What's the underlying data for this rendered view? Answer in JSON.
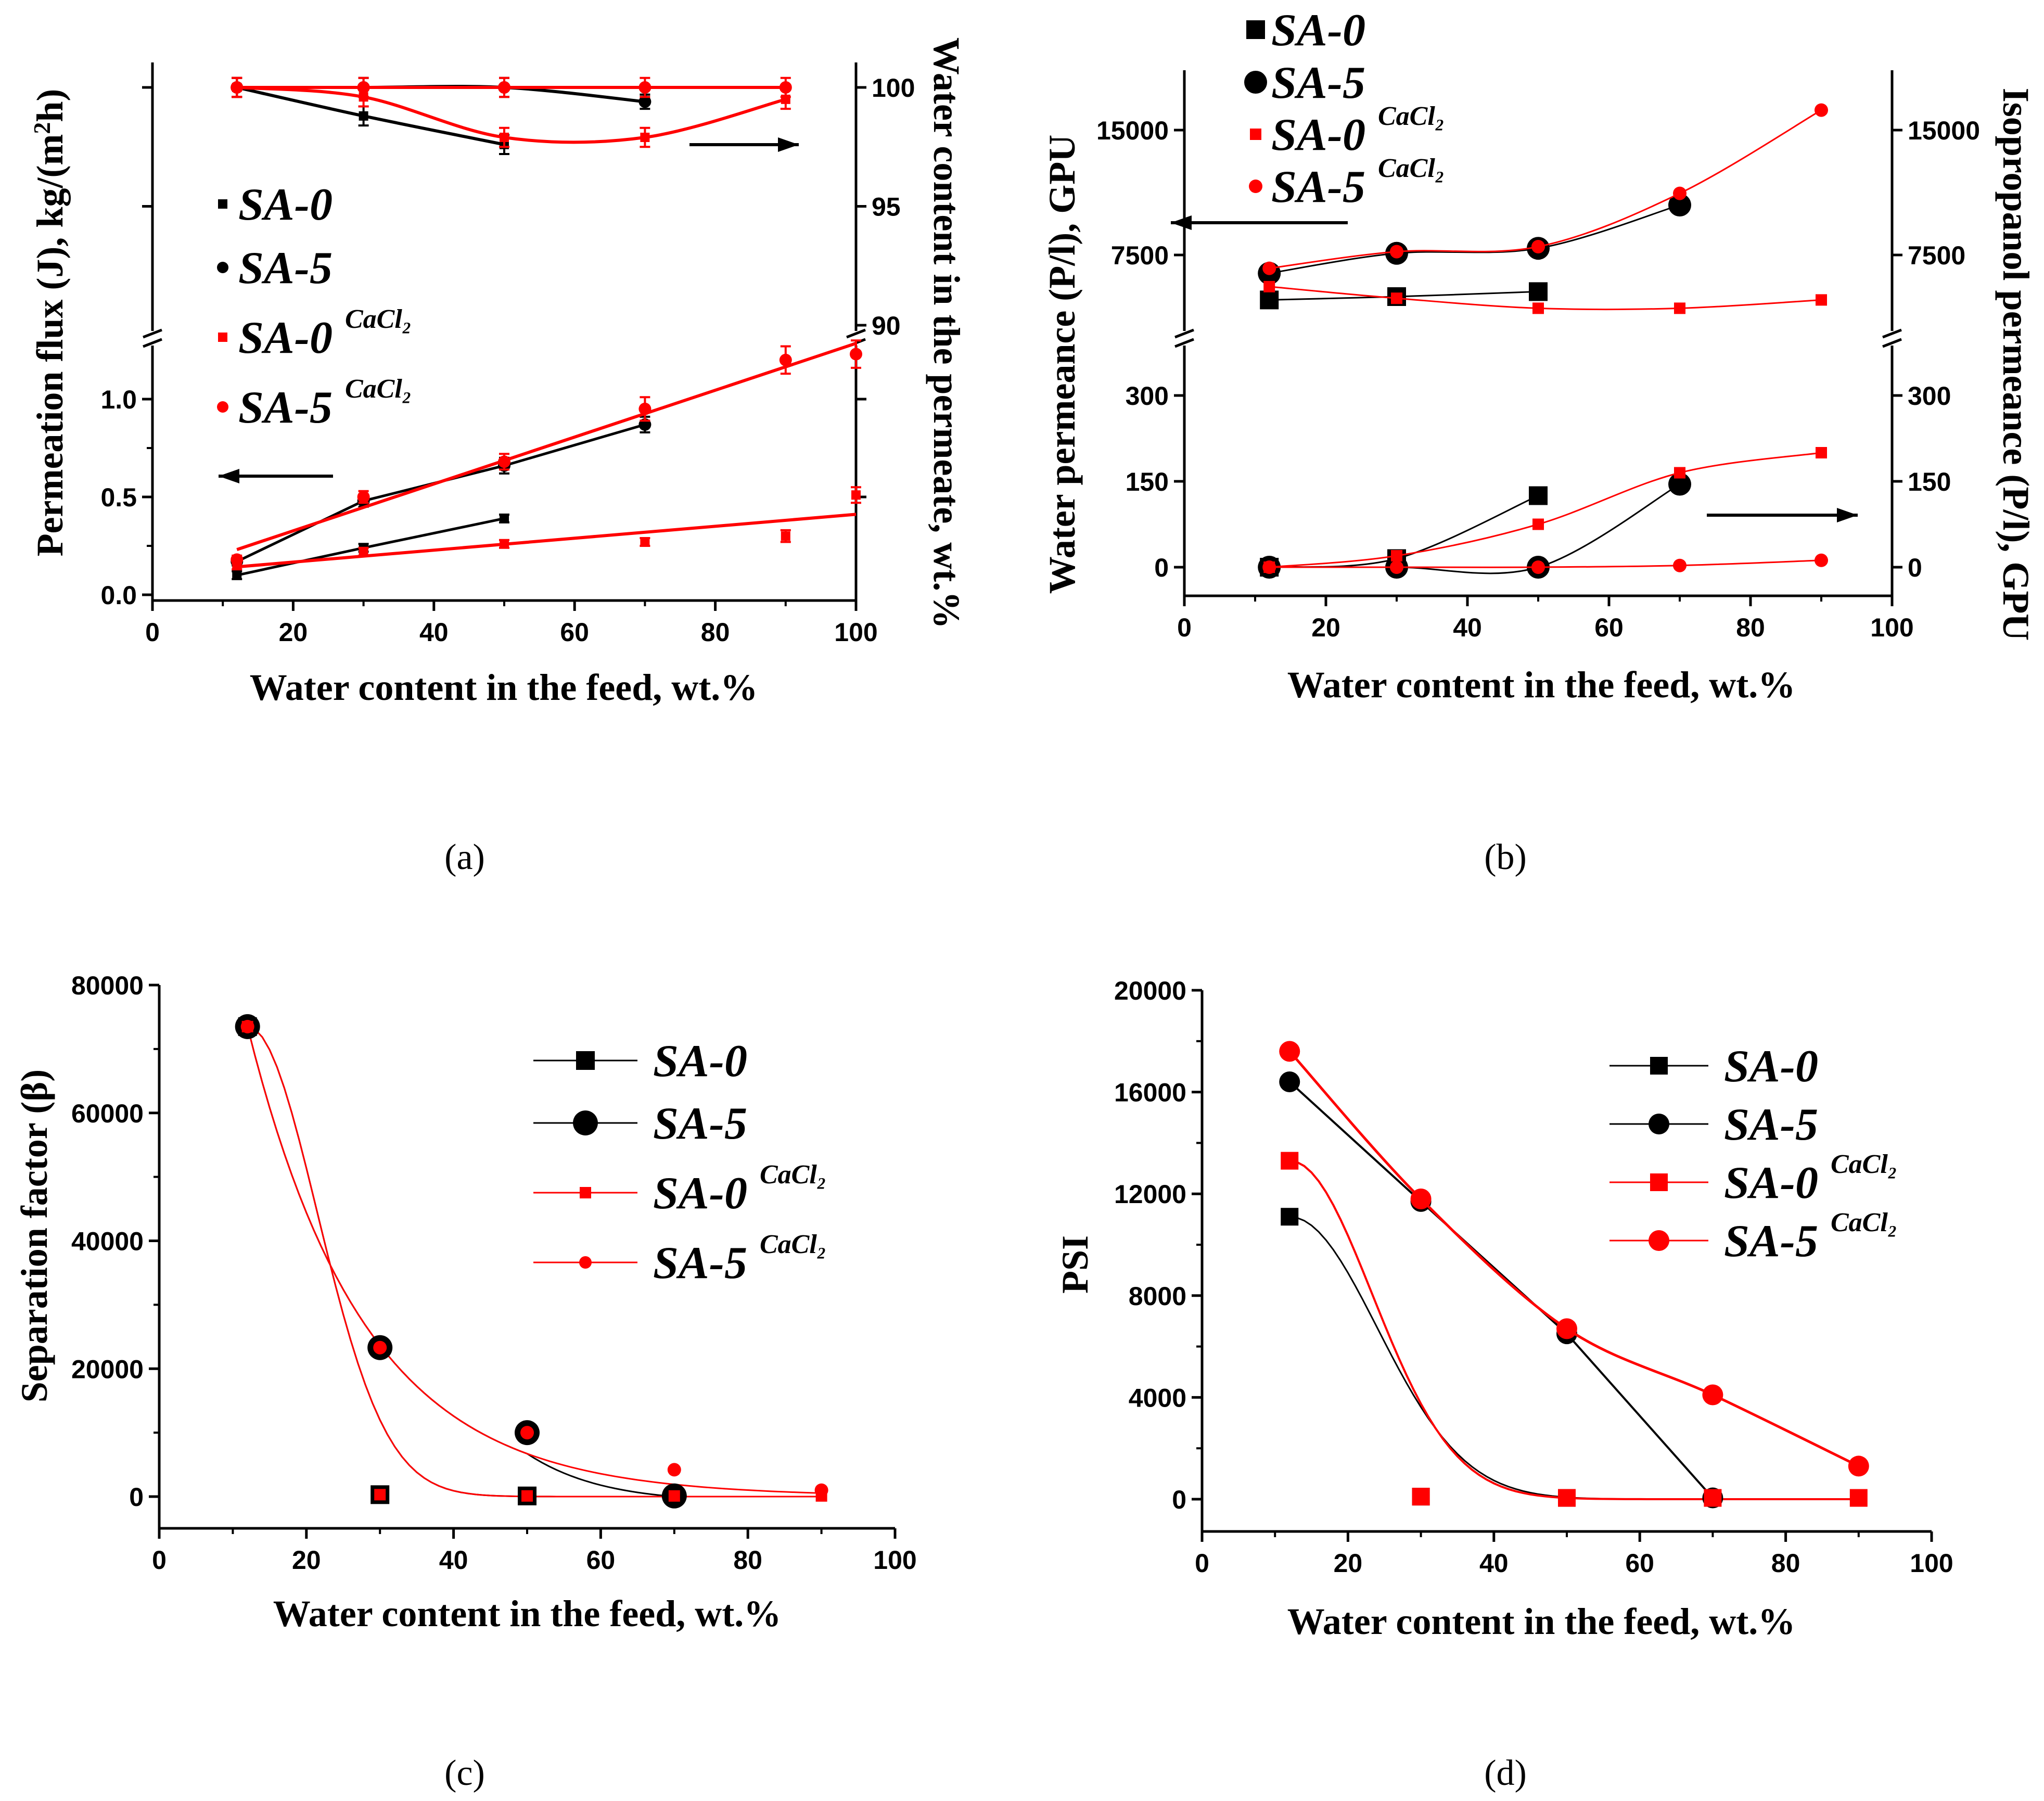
{
  "colors": {
    "black": "#000000",
    "red": "#ff0000"
  },
  "chart_data": [
    {
      "panel": "a",
      "panel_label": "(a)",
      "type": "scatter",
      "xlabel": "Water content in the feed, wt.%",
      "ylabel": "Permeation flux (J), kg/(m²h)",
      "ylabel_left": "Permeation flux (J), kg/(m",
      "ylabel_right": "h)",
      "y2label": "Water content in the permeate, wt.%",
      "x_ticks": [
        "0",
        "20",
        "40",
        "60",
        "80",
        "100"
      ],
      "y_ticks": [
        "0.0",
        "0.5",
        "1.0"
      ],
      "y2_ticks": [
        "90",
        "95",
        "100"
      ],
      "xlim": [
        0,
        100
      ],
      "ylim_flux": [
        -0.05,
        1.3
      ],
      "ylim_permeate": [
        90,
        101
      ],
      "legend": [
        "SA-0",
        "SA-5",
        "SA-0",
        "SA-5"
      ],
      "legend_sup": "CaCl₂",
      "legend_sup_main": "CaCl",
      "legend_sup_sub": "2",
      "series": [
        {
          "name": "SA-0",
          "color": "black",
          "marker": "square",
          "axis": "flux",
          "x": [
            12,
            30,
            50
          ],
          "y": [
            0.1,
            0.24,
            0.39
          ],
          "err": [
            0.02,
            0.02,
            0.02
          ]
        },
        {
          "name": "SA-5",
          "color": "black",
          "marker": "circle",
          "axis": "flux",
          "x": [
            12,
            30,
            50,
            70
          ],
          "y": [
            0.17,
            0.48,
            0.66,
            0.87
          ],
          "err": [
            0.02,
            0.03,
            0.04,
            0.04
          ]
        },
        {
          "name": "SA-0 CaCl2",
          "color": "red",
          "marker": "square",
          "axis": "flux",
          "x": [
            12,
            30,
            50,
            70,
            90,
            100
          ],
          "y": [
            0.15,
            0.22,
            0.26,
            0.27,
            0.3,
            0.51
          ],
          "err": [
            0.02,
            0.02,
            0.02,
            0.02,
            0.03,
            0.04
          ]
        },
        {
          "name": "SA-5 CaCl2",
          "color": "red",
          "marker": "circle",
          "axis": "flux",
          "x": [
            12,
            30,
            50,
            70,
            90,
            100
          ],
          "y": [
            0.18,
            0.5,
            0.68,
            0.95,
            1.2,
            1.23
          ],
          "err": [
            0.02,
            0.03,
            0.04,
            0.06,
            0.07,
            0.07
          ]
        },
        {
          "name": "SA-0 permeate",
          "color": "black",
          "marker": "square",
          "axis": "permeate",
          "x": [
            12,
            30,
            50
          ],
          "y": [
            100,
            98.8,
            97.6
          ],
          "err": [
            0.4,
            0.4,
            0.4
          ]
        },
        {
          "name": "SA-5 permeate",
          "color": "black",
          "marker": "circle",
          "axis": "permeate",
          "x": [
            12,
            30,
            50,
            70
          ],
          "y": [
            100,
            100,
            100,
            99.4
          ],
          "err": [
            0.4,
            0.4,
            0.4,
            0.3
          ]
        },
        {
          "name": "SA-0 CaCl2 permeate",
          "color": "red",
          "marker": "square",
          "axis": "permeate",
          "x": [
            12,
            30,
            50,
            70,
            90
          ],
          "y": [
            100,
            99.6,
            97.9,
            97.9,
            99.5
          ],
          "err": [
            0.4,
            0.4,
            0.4,
            0.4,
            0.4
          ]
        },
        {
          "name": "SA-5 CaCl2 permeate",
          "color": "red",
          "marker": "circle",
          "axis": "permeate",
          "x": [
            12,
            30,
            50,
            70,
            90
          ],
          "y": [
            100,
            100,
            100,
            100,
            100
          ],
          "err": [
            0.4,
            0.4,
            0.4,
            0.4,
            0.4
          ]
        }
      ]
    },
    {
      "panel": "b",
      "panel_label": "(b)",
      "type": "scatter",
      "xlabel": "Water content in the feed, wt.%",
      "ylabel": "Water permeance (P/l), GPU",
      "y2label": "Isopropanol permeance (P/l), GPU",
      "x_ticks": [
        "0",
        "20",
        "40",
        "60",
        "80",
        "100"
      ],
      "y_ticks_low": [
        "0",
        "150",
        "300"
      ],
      "y_ticks_high": [
        "7500",
        "15000"
      ],
      "xlim": [
        0,
        100
      ],
      "ylim_low": [
        -50,
        380
      ],
      "ylim_high": [
        3000,
        18500
      ],
      "legend": [
        "SA-0",
        "SA-5",
        "SA-0",
        "SA-5"
      ],
      "legend_sup": "CaCl₂",
      "series": [
        {
          "name": "SA-0 water",
          "color": "black",
          "marker": "square",
          "x": [
            12,
            30,
            50
          ],
          "y": [
            4800,
            5000,
            5300
          ]
        },
        {
          "name": "SA-5 water",
          "color": "black",
          "marker": "circle",
          "x": [
            12,
            30,
            50,
            70
          ],
          "y": [
            6400,
            7600,
            7900,
            10500
          ]
        },
        {
          "name": "SA-0 CaCl2 water",
          "color": "red",
          "marker": "square",
          "x": [
            12,
            30,
            50,
            70,
            90
          ],
          "y": [
            5600,
            4900,
            4300,
            4300,
            4800
          ]
        },
        {
          "name": "SA-5 CaCl2 water",
          "color": "red",
          "marker": "circle",
          "x": [
            12,
            30,
            50,
            70,
            90
          ],
          "y": [
            6700,
            7700,
            8000,
            11200,
            16200
          ]
        },
        {
          "name": "SA-0 isopropanol",
          "color": "black",
          "marker": "square",
          "x": [
            12,
            30,
            50
          ],
          "y": [
            0,
            15,
            125
          ]
        },
        {
          "name": "SA-5 isopropanol",
          "color": "black",
          "marker": "circle",
          "x": [
            12,
            30,
            50,
            70
          ],
          "y": [
            0,
            0,
            0,
            145
          ]
        },
        {
          "name": "SA-0 CaCl2 isopropanol",
          "color": "red",
          "marker": "square",
          "x": [
            12,
            30,
            50,
            70,
            90
          ],
          "y": [
            0,
            20,
            75,
            165,
            200
          ]
        },
        {
          "name": "SA-5 CaCl2 isopropanol",
          "color": "red",
          "marker": "circle",
          "x": [
            12,
            30,
            50,
            70,
            90
          ],
          "y": [
            0,
            0,
            0,
            3,
            12
          ]
        }
      ]
    },
    {
      "panel": "c",
      "panel_label": "(c)",
      "type": "scatter",
      "xlabel": "Water content in the feed, wt.%",
      "ylabel": "Separation factor (β)",
      "x_ticks": [
        "0",
        "20",
        "40",
        "60",
        "80",
        "100"
      ],
      "y_ticks": [
        "0",
        "20000",
        "40000",
        "60000",
        "80000"
      ],
      "xlim": [
        0,
        100
      ],
      "ylim": [
        -5000,
        80000
      ],
      "legend": [
        "SA-0",
        "SA-5",
        "SA-0",
        "SA-5"
      ],
      "legend_sup": "CaCl₂",
      "series": [
        {
          "name": "SA-0",
          "color": "black",
          "marker": "square",
          "x": [
            12,
            30,
            50
          ],
          "y": [
            73500,
            300,
            100
          ]
        },
        {
          "name": "SA-5",
          "color": "black",
          "marker": "circle",
          "x": [
            12,
            30,
            50,
            70
          ],
          "y": [
            73500,
            23300,
            10000,
            100
          ]
        },
        {
          "name": "SA-0 CaCl2",
          "color": "red",
          "marker": "square",
          "x": [
            12,
            30,
            50,
            70,
            90
          ],
          "y": [
            73500,
            300,
            100,
            100,
            100
          ]
        },
        {
          "name": "SA-5 CaCl2",
          "color": "red",
          "marker": "circle",
          "x": [
            12,
            30,
            50,
            70,
            90
          ],
          "y": [
            73500,
            23300,
            10000,
            4200,
            1000
          ]
        }
      ]
    },
    {
      "panel": "d",
      "panel_label": "(d)",
      "type": "line",
      "xlabel": "Water content in the feed, wt.%",
      "ylabel": "PSI",
      "x_ticks": [
        "0",
        "20",
        "40",
        "60",
        "80",
        "100"
      ],
      "y_ticks": [
        "0",
        "4000",
        "8000",
        "12000",
        "16000",
        "20000"
      ],
      "xlim": [
        0,
        100
      ],
      "ylim": [
        -1000,
        20000
      ],
      "legend": [
        "SA-0",
        "SA-5",
        "SA-0",
        "SA-5"
      ],
      "legend_sup": "CaCl₂",
      "series": [
        {
          "name": "SA-0",
          "color": "black",
          "marker": "square",
          "x": [
            12,
            30,
            50
          ],
          "y": [
            11100,
            100,
            50
          ]
        },
        {
          "name": "SA-5",
          "color": "black",
          "marker": "circle",
          "x": [
            12,
            30,
            50,
            70
          ],
          "y": [
            16400,
            11700,
            6500,
            50
          ]
        },
        {
          "name": "SA-0 CaCl2",
          "color": "red",
          "marker": "square",
          "x": [
            12,
            30,
            50,
            70,
            90
          ],
          "y": [
            13300,
            100,
            50,
            50,
            50
          ]
        },
        {
          "name": "SA-5 CaCl2",
          "color": "red",
          "marker": "circle",
          "x": [
            12,
            30,
            50,
            70,
            90
          ],
          "y": [
            17600,
            11800,
            6700,
            4100,
            1300
          ]
        }
      ]
    }
  ]
}
